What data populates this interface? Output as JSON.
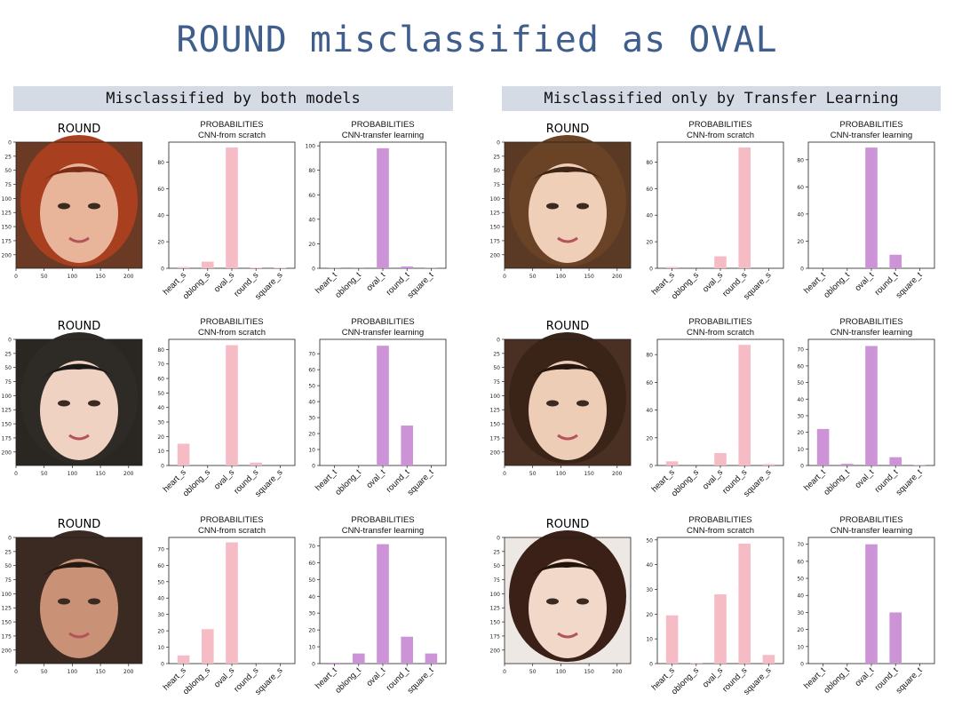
{
  "title": "ROUND misclassified as OVAL",
  "sections": [
    {
      "label": "Misclassified by both models"
    },
    {
      "label": "Misclassified only by Transfer Learning"
    }
  ],
  "colors": {
    "title": "#3f5e8c",
    "section_bg": "#d5dbe4",
    "scratch": "#f5bcc6",
    "transfer": "#cc94d6"
  },
  "face_axis": {
    "y_ticks": [
      "0",
      "25",
      "50",
      "75",
      "100",
      "125",
      "150",
      "175",
      "200"
    ],
    "x_ticks": [
      "0",
      "50",
      "100",
      "150",
      "200"
    ]
  },
  "chart_common": {
    "line1": "PROBABILITIES",
    "scratch_title": "CNN-from scratch",
    "transfer_title": "CNN-transfer learning"
  },
  "chart_data": [
    {
      "type": "bar",
      "panel": 1,
      "model": "scratch",
      "image_label": "ROUND",
      "categories": [
        "heart_s",
        "oblong_s",
        "oval_s",
        "round_s",
        "square_s"
      ],
      "values": [
        1,
        5,
        91,
        0.5,
        0.3
      ],
      "ylim": [
        0,
        95
      ],
      "yticks": [
        0,
        20,
        40,
        60,
        80
      ]
    },
    {
      "type": "bar",
      "panel": 1,
      "model": "transfer",
      "categories": [
        "heart_t",
        "oblong_t",
        "oval_t",
        "round_t",
        "square_t"
      ],
      "values": [
        0.2,
        0.1,
        98,
        1.5,
        0.2
      ],
      "ylim": [
        0,
        103
      ],
      "yticks": [
        0,
        20,
        40,
        60,
        80,
        100
      ]
    },
    {
      "type": "bar",
      "panel": 2,
      "model": "scratch",
      "image_label": "ROUND",
      "categories": [
        "heart_s",
        "oblong_s",
        "oval_s",
        "round_s",
        "square_s"
      ],
      "values": [
        1,
        0,
        9,
        91,
        0
      ],
      "ylim": [
        0,
        95
      ],
      "yticks": [
        0,
        20,
        40,
        60,
        80
      ]
    },
    {
      "type": "bar",
      "panel": 2,
      "model": "transfer",
      "categories": [
        "heart_t",
        "oblong_t",
        "oval_t",
        "round_t",
        "square_t"
      ],
      "values": [
        0,
        0,
        89,
        10,
        0
      ],
      "ylim": [
        0,
        93
      ],
      "yticks": [
        0,
        20,
        40,
        60,
        80
      ]
    },
    {
      "type": "bar",
      "panel": 3,
      "model": "scratch",
      "image_label": "ROUND",
      "categories": [
        "heart_s",
        "oblong_s",
        "oval_s",
        "round_s",
        "square_s"
      ],
      "values": [
        15,
        0,
        83,
        2,
        0
      ],
      "ylim": [
        0,
        87
      ],
      "yticks": [
        0,
        10,
        20,
        30,
        40,
        50,
        60,
        70,
        80
      ]
    },
    {
      "type": "bar",
      "panel": 3,
      "model": "transfer",
      "categories": [
        "heart_t",
        "oblong_t",
        "oval_t",
        "round_t",
        "square_t"
      ],
      "values": [
        0,
        0,
        75,
        25,
        0
      ],
      "ylim": [
        0,
        79
      ],
      "yticks": [
        0,
        10,
        20,
        30,
        40,
        50,
        60,
        70
      ]
    },
    {
      "type": "bar",
      "panel": 4,
      "model": "scratch",
      "image_label": "ROUND",
      "categories": [
        "heart_s",
        "oblong_s",
        "oval_s",
        "round_s",
        "square_s"
      ],
      "values": [
        3,
        0,
        9,
        87,
        1
      ],
      "ylim": [
        0,
        91
      ],
      "yticks": [
        0,
        20,
        40,
        60,
        80
      ]
    },
    {
      "type": "bar",
      "panel": 4,
      "model": "transfer",
      "categories": [
        "heart_t",
        "oblong_t",
        "oval_t",
        "round_t",
        "square_t"
      ],
      "values": [
        22,
        1,
        72,
        5,
        0.3
      ],
      "ylim": [
        0,
        76
      ],
      "yticks": [
        0,
        10,
        20,
        30,
        40,
        50,
        60,
        70
      ]
    },
    {
      "type": "bar",
      "panel": 5,
      "model": "scratch",
      "image_label": "ROUND",
      "categories": [
        "heart_s",
        "oblong_s",
        "oval_s",
        "round_s",
        "square_s"
      ],
      "values": [
        5,
        21,
        74,
        0,
        0
      ],
      "ylim": [
        0,
        77
      ],
      "yticks": [
        0,
        10,
        20,
        30,
        40,
        50,
        60,
        70
      ]
    },
    {
      "type": "bar",
      "panel": 5,
      "model": "transfer",
      "categories": [
        "heart_t",
        "oblong_t",
        "oval_t",
        "round_t",
        "square_t"
      ],
      "values": [
        0.5,
        6,
        71,
        16,
        6
      ],
      "ylim": [
        0,
        75
      ],
      "yticks": [
        0,
        10,
        20,
        30,
        40,
        50,
        60,
        70
      ]
    },
    {
      "type": "bar",
      "panel": 6,
      "model": "scratch",
      "image_label": "ROUND",
      "categories": [
        "heart_s",
        "oblong_s",
        "oval_s",
        "round_s",
        "square_s"
      ],
      "values": [
        19.5,
        0.3,
        28,
        48.5,
        3.5
      ],
      "ylim": [
        0,
        51
      ],
      "yticks": [
        0,
        10,
        20,
        30,
        40,
        50
      ]
    },
    {
      "type": "bar",
      "panel": 6,
      "model": "transfer",
      "categories": [
        "heart_t",
        "oblong_t",
        "oval_t",
        "round_t",
        "square_t"
      ],
      "values": [
        0,
        0,
        70,
        30,
        0
      ],
      "ylim": [
        0,
        74
      ],
      "yticks": [
        0,
        10,
        20,
        30,
        40,
        50,
        60,
        70
      ]
    }
  ]
}
